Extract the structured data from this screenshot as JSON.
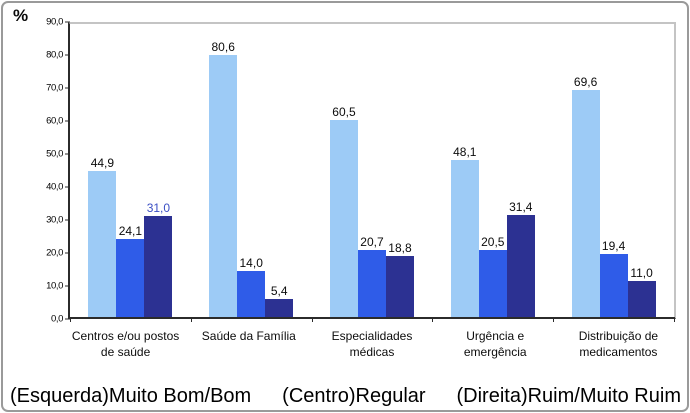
{
  "y_axis_unit": "%",
  "caption": {
    "muito_bom": "(Esquerda)Muito Bom/Bom",
    "regular": "(Centro)Regular",
    "ruim": "(Direita)Ruim/Muito Ruim"
  },
  "colors": {
    "muito_bom_bar": "#9DCBF6",
    "regular_bar": "#2F5CE8",
    "ruim_bar": "#2C3192",
    "axis": "#2B2B2B",
    "plot_border": "#C4C4C4",
    "highlighted_value_label": "#3B4FC4"
  },
  "chart_data": {
    "type": "bar",
    "ylabel": "%",
    "ylim": [
      0,
      90
    ],
    "ytick_step": 10,
    "ytick_labels": [
      "0,0",
      "10,0",
      "20,0",
      "30,0",
      "40,0",
      "50,0",
      "60,0",
      "70,0",
      "80,0",
      "90,0"
    ],
    "grid": false,
    "legend_position": "bottom caption",
    "categories": [
      "Centros e/ou postos de saúde",
      "Saúde da Família",
      "Especialidades médicas",
      "Urgência e emergência",
      "Distribuição de medicamentos"
    ],
    "series": [
      {
        "name": "Muito Bom/Bom",
        "position": "esquerda",
        "color": "#9DCBF6",
        "values": [
          44.9,
          80.6,
          60.5,
          48.1,
          69.6
        ],
        "value_labels": [
          "44,9",
          "80,6",
          "60,5",
          "48,1",
          "69,6"
        ]
      },
      {
        "name": "Regular",
        "position": "centro",
        "color": "#2F5CE8",
        "values": [
          24.1,
          14.0,
          20.7,
          20.5,
          19.4
        ],
        "value_labels": [
          "24,1",
          "14,0",
          "20,7",
          "20,5",
          "19,4"
        ]
      },
      {
        "name": "Ruim/Muito Ruim",
        "position": "direita",
        "color": "#2C3192",
        "values": [
          31.0,
          5.4,
          18.8,
          31.4,
          11.0
        ],
        "value_labels": [
          "31,0",
          "5,4",
          "18,8",
          "31,4",
          "11,0"
        ],
        "value_label_colors": [
          "#3B4FC4",
          null,
          null,
          null,
          null
        ]
      }
    ]
  }
}
